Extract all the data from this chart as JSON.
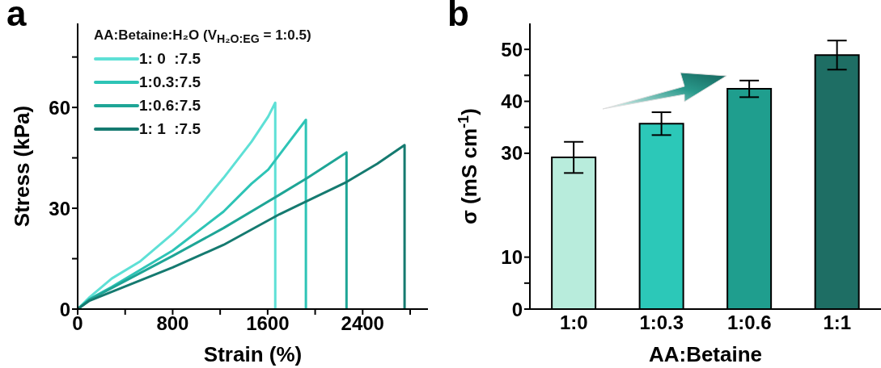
{
  "chart_data": [
    {
      "type": "line",
      "title": "a",
      "xlabel": "Strain (%)",
      "ylabel": "Stress (kPa)",
      "legend_title": "AA:Betaine:H₂O (V$_{H₂O:EG}$ = 1:0.5)",
      "legend": "top left",
      "marker": "none",
      "line_style": "solid",
      "grid": false,
      "xlim": [
        0,
        2950
      ],
      "ylim": [
        0,
        85
      ],
      "xticks": [
        0,
        {
          "value": 400,
          "label": null
        },
        800,
        {
          "value": 1200,
          "label": null
        },
        1600,
        {
          "value": 2000,
          "label": null
        },
        2400,
        {
          "value": 2800,
          "label": null
        }
      ],
      "yticks": [
        0,
        {
          "value": 15,
          "label": null
        },
        30,
        {
          "value": 45,
          "label": null
        },
        60,
        {
          "value": 75,
          "label": null
        }
      ],
      "series": [
        {
          "name": "1: 0  :7.5",
          "color": "#5ee0d6",
          "x": [
            0,
            100,
            287,
            522,
            800,
            993,
            1228,
            1464,
            1605,
            1664,
            1664
          ],
          "values": [
            0,
            3.5,
            9.1,
            14.1,
            22.4,
            29,
            39,
            49.8,
            57.3,
            61.4,
            0
          ]
        },
        {
          "name": "1:0.3:7.5",
          "color": "#2ec4b6",
          "x": [
            0,
            100,
            287,
            800,
            1228,
            1464,
            1605,
            1746,
            1922,
            1922
          ],
          "values": [
            0,
            3,
            6.6,
            17.4,
            29,
            37.3,
            41.5,
            48.1,
            56.3,
            0
          ]
        },
        {
          "name": "1:0.6:7.5",
          "color": "#1ea596",
          "x": [
            0,
            100,
            800,
            1228,
            1699,
            1934,
            2264,
            2264
          ],
          "values": [
            0,
            2.8,
            15.8,
            24.1,
            34,
            39,
            46.6,
            0
          ]
        },
        {
          "name": "1: 1  :7.5",
          "color": "#157a70",
          "x": [
            0,
            100,
            800,
            1228,
            1699,
            2264,
            2522,
            2753,
            2753
          ],
          "values": [
            0,
            2.5,
            12.4,
            19.1,
            28.2,
            37.8,
            43.2,
            48.8,
            0
          ]
        }
      ]
    },
    {
      "type": "bar",
      "title": "b",
      "xlabel": "AA:Betaine",
      "ylabel": "σ (mS cm$^{-1}$)",
      "grid": false,
      "categories": [
        "1:0",
        "1:0.3",
        "1:0.6",
        "1:1"
      ],
      "values": [
        29.2,
        35.7,
        42.4,
        48.9
      ],
      "errors": [
        3.0,
        2.2,
        1.6,
        2.8
      ],
      "colors": [
        "#b8ecdc",
        "#2cc8b8",
        "#1f9e8e",
        "#1e6e64"
      ],
      "ylim": [
        0,
        55
      ],
      "yticks": [
        0,
        {
          "value": 5,
          "label": null
        },
        10,
        30,
        {
          "value": 35,
          "label": null
        },
        40,
        {
          "value": 45,
          "label": null
        },
        50
      ]
    }
  ]
}
